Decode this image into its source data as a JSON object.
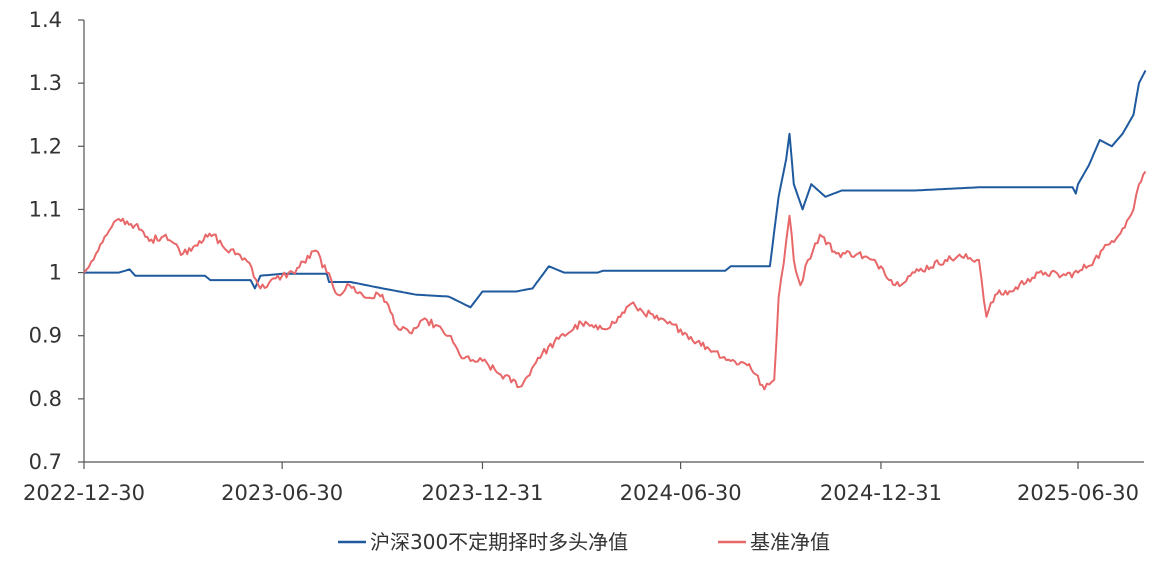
{
  "chart_data": {
    "type": "line",
    "title": "",
    "xlabel": "",
    "ylabel": "",
    "ylim": [
      0.7,
      1.4
    ],
    "yticks": [
      "0.7",
      "0.8",
      "0.9",
      "1",
      "1.1",
      "1.2",
      "1.3",
      "1.4"
    ],
    "xticks": [
      "2022-12-30",
      "2023-06-30",
      "2023-12-31",
      "2024-06-30",
      "2024-12-31",
      "2025-06-30"
    ],
    "xlim": [
      "2022-12-30",
      "2025-08-31"
    ],
    "grid": false,
    "legend_position": "bottom",
    "series": [
      {
        "name": "沪深300不定期择时多头净值",
        "color": "#1f5a9e",
        "points": [
          [
            "2022-12-30",
            1.0
          ],
          [
            "2023-01-31",
            1.0
          ],
          [
            "2023-02-10",
            1.005
          ],
          [
            "2023-02-15",
            0.995
          ],
          [
            "2023-04-20",
            0.995
          ],
          [
            "2023-04-25",
            0.988
          ],
          [
            "2023-06-01",
            0.988
          ],
          [
            "2023-06-05",
            0.975
          ],
          [
            "2023-06-10",
            0.995
          ],
          [
            "2023-06-30",
            0.998
          ],
          [
            "2023-08-10",
            0.998
          ],
          [
            "2023-08-12",
            0.985
          ],
          [
            "2023-09-01",
            0.985
          ],
          [
            "2023-09-30",
            0.975
          ],
          [
            "2023-10-31",
            0.965
          ],
          [
            "2023-11-30",
            0.962
          ],
          [
            "2023-12-20",
            0.945
          ],
          [
            "2023-12-31",
            0.97
          ],
          [
            "2024-01-31",
            0.97
          ],
          [
            "2024-02-15",
            0.975
          ],
          [
            "2024-03-01",
            1.01
          ],
          [
            "2024-03-15",
            1.0
          ],
          [
            "2024-04-15",
            1.0
          ],
          [
            "2024-04-20",
            1.003
          ],
          [
            "2024-06-30",
            1.003
          ],
          [
            "2024-08-10",
            1.003
          ],
          [
            "2024-08-15",
            1.01
          ],
          [
            "2024-09-20",
            1.01
          ],
          [
            "2024-09-28",
            1.12
          ],
          [
            "2024-10-05",
            1.18
          ],
          [
            "2024-10-08",
            1.22
          ],
          [
            "2024-10-12",
            1.14
          ],
          [
            "2024-10-20",
            1.1
          ],
          [
            "2024-10-28",
            1.14
          ],
          [
            "2024-11-10",
            1.12
          ],
          [
            "2024-11-25",
            1.13
          ],
          [
            "2025-01-31",
            1.13
          ],
          [
            "2025-03-31",
            1.135
          ],
          [
            "2025-06-25",
            1.135
          ],
          [
            "2025-06-28",
            1.125
          ],
          [
            "2025-06-30",
            1.14
          ],
          [
            "2025-07-10",
            1.17
          ],
          [
            "2025-07-20",
            1.21
          ],
          [
            "2025-07-31",
            1.2
          ],
          [
            "2025-08-10",
            1.22
          ],
          [
            "2025-08-20",
            1.25
          ],
          [
            "2025-08-25",
            1.3
          ],
          [
            "2025-08-31",
            1.32
          ]
        ]
      },
      {
        "name": "基准净值",
        "color": "#e8686a",
        "points": [
          [
            "2022-12-30",
            1.0
          ],
          [
            "2023-01-10",
            1.03
          ],
          [
            "2023-01-20",
            1.06
          ],
          [
            "2023-01-31",
            1.085
          ],
          [
            "2023-02-15",
            1.075
          ],
          [
            "2023-02-28",
            1.05
          ],
          [
            "2023-03-15",
            1.06
          ],
          [
            "2023-03-31",
            1.03
          ],
          [
            "2023-04-15",
            1.05
          ],
          [
            "2023-04-28",
            1.06
          ],
          [
            "2023-05-10",
            1.035
          ],
          [
            "2023-05-20",
            1.03
          ],
          [
            "2023-05-31",
            1.015
          ],
          [
            "2023-06-10",
            0.975
          ],
          [
            "2023-06-30",
            0.995
          ],
          [
            "2023-07-10",
            1.0
          ],
          [
            "2023-07-31",
            1.035
          ],
          [
            "2023-08-10",
            1.0
          ],
          [
            "2023-08-20",
            0.965
          ],
          [
            "2023-08-31",
            0.98
          ],
          [
            "2023-09-15",
            0.96
          ],
          [
            "2023-09-30",
            0.965
          ],
          [
            "2023-10-15",
            0.91
          ],
          [
            "2023-10-25",
            0.905
          ],
          [
            "2023-11-10",
            0.925
          ],
          [
            "2023-11-30",
            0.9
          ],
          [
            "2023-12-10",
            0.87
          ],
          [
            "2023-12-20",
            0.86
          ],
          [
            "2023-12-31",
            0.86
          ],
          [
            "2024-01-15",
            0.84
          ],
          [
            "2024-02-05",
            0.82
          ],
          [
            "2024-02-20",
            0.865
          ],
          [
            "2024-03-10",
            0.895
          ],
          [
            "2024-03-31",
            0.92
          ],
          [
            "2024-04-15",
            0.91
          ],
          [
            "2024-04-30",
            0.92
          ],
          [
            "2024-05-15",
            0.95
          ],
          [
            "2024-05-20",
            0.945
          ],
          [
            "2024-06-10",
            0.925
          ],
          [
            "2024-06-30",
            0.91
          ],
          [
            "2024-07-15",
            0.89
          ],
          [
            "2024-08-01",
            0.875
          ],
          [
            "2024-08-15",
            0.86
          ],
          [
            "2024-09-01",
            0.855
          ],
          [
            "2024-09-15",
            0.815
          ],
          [
            "2024-09-24",
            0.83
          ],
          [
            "2024-09-28",
            0.96
          ],
          [
            "2024-10-05",
            1.05
          ],
          [
            "2024-10-08",
            1.09
          ],
          [
            "2024-10-12",
            1.02
          ],
          [
            "2024-10-18",
            0.98
          ],
          [
            "2024-10-25",
            1.02
          ],
          [
            "2024-11-05",
            1.06
          ],
          [
            "2024-11-20",
            1.03
          ],
          [
            "2024-12-10",
            1.03
          ],
          [
            "2024-12-31",
            1.01
          ],
          [
            "2025-01-13",
            0.98
          ],
          [
            "2025-01-31",
            1.0
          ],
          [
            "2025-02-28",
            1.02
          ],
          [
            "2025-03-15",
            1.025
          ],
          [
            "2025-03-31",
            1.02
          ],
          [
            "2025-04-07",
            0.93
          ],
          [
            "2025-04-15",
            0.965
          ],
          [
            "2025-04-30",
            0.97
          ],
          [
            "2025-05-15",
            0.99
          ],
          [
            "2025-05-31",
            1.0
          ],
          [
            "2025-06-15",
            0.995
          ],
          [
            "2025-06-30",
            1.0
          ],
          [
            "2025-07-15",
            1.02
          ],
          [
            "2025-07-31",
            1.05
          ],
          [
            "2025-08-10",
            1.07
          ],
          [
            "2025-08-20",
            1.1
          ],
          [
            "2025-08-25",
            1.14
          ],
          [
            "2025-08-31",
            1.16
          ]
        ]
      }
    ]
  }
}
